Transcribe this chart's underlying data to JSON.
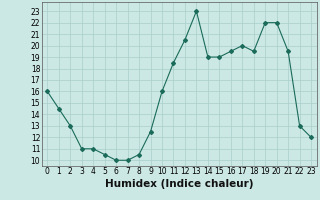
{
  "x": [
    0,
    1,
    2,
    3,
    4,
    5,
    6,
    7,
    8,
    9,
    10,
    11,
    12,
    13,
    14,
    15,
    16,
    17,
    18,
    19,
    20,
    21,
    22,
    23
  ],
  "y": [
    16,
    14.5,
    13,
    11,
    11,
    10.5,
    10,
    10,
    10.5,
    12.5,
    16,
    18.5,
    20.5,
    23,
    19,
    19,
    19.5,
    20,
    19.5,
    22,
    22,
    19.5,
    13,
    12
  ],
  "line_color": "#1a6b5a",
  "marker": "D",
  "marker_size": 2,
  "bg_color": "#cce8e4",
  "grid_color": "#aacfcb",
  "xlabel": "Humidex (Indice chaleur)",
  "xlabel_fontsize": 7.5,
  "ylabel_ticks": [
    10,
    11,
    12,
    13,
    14,
    15,
    16,
    17,
    18,
    19,
    20,
    21,
    22,
    23
  ],
  "xlim": [
    -0.5,
    23.5
  ],
  "ylim": [
    9.5,
    23.8
  ],
  "xticks": [
    0,
    1,
    2,
    3,
    4,
    5,
    6,
    7,
    8,
    9,
    10,
    11,
    12,
    13,
    14,
    15,
    16,
    17,
    18,
    19,
    20,
    21,
    22,
    23
  ],
  "tick_fontsize": 5.5
}
